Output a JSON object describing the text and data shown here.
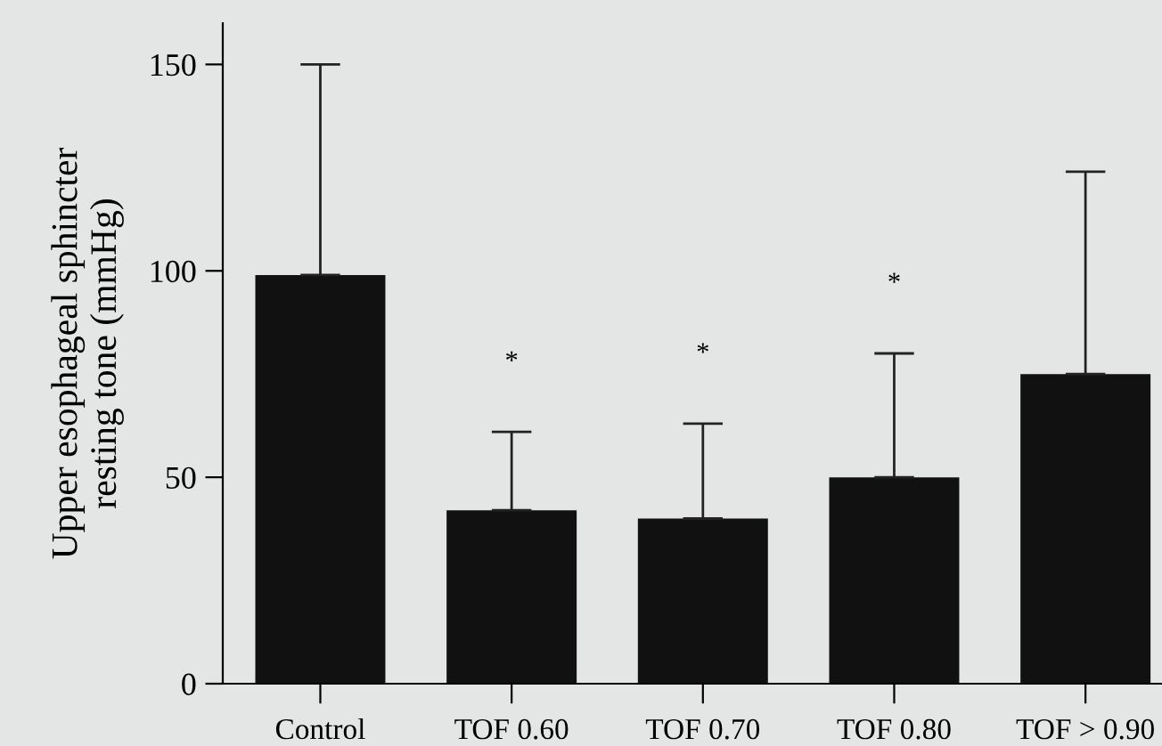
{
  "chart_data": {
    "type": "bar",
    "ylabel": "Upper esophageal sphincter\nresting tone (mmHg)",
    "categories": [
      "Control",
      "TOF 0.60",
      "TOF 0.70",
      "TOF 0.80",
      "TOF > 0.90"
    ],
    "values": [
      99,
      42,
      40,
      50,
      75
    ],
    "errors": [
      [
        99,
        150
      ],
      [
        42,
        61
      ],
      [
        40,
        63
      ],
      [
        50,
        80
      ],
      [
        75,
        124
      ]
    ],
    "color": "#111111",
    "ylim": [
      0,
      160
    ],
    "yticks": [
      0,
      50,
      100,
      150
    ],
    "annotations": [
      "*",
      "*",
      "*"
    ]
  }
}
